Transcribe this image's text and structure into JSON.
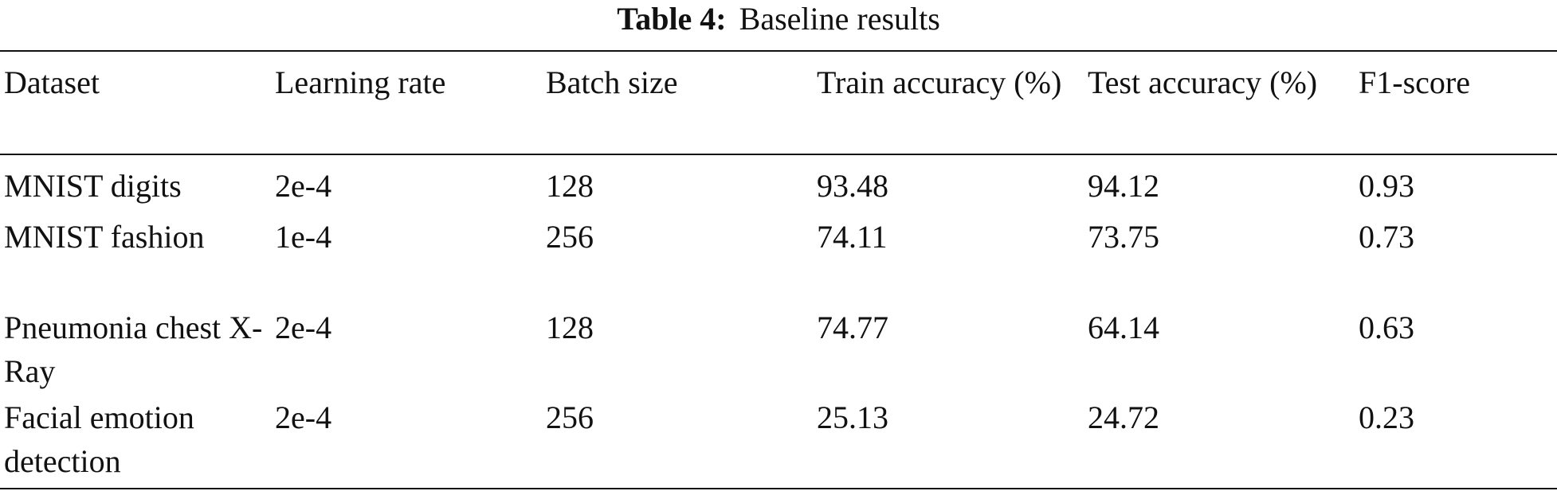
{
  "caption": {
    "label": "Table 4:",
    "title": "Baseline results"
  },
  "table": {
    "headers": [
      "Dataset",
      "Learning rate",
      "Batch size",
      "Train accuracy (%)",
      "Test accuracy (%)",
      "F1-score"
    ],
    "rows": [
      [
        "MNIST digits",
        "2e-4",
        "128",
        "93.48",
        "94.12",
        "0.93"
      ],
      [
        "MNIST fashion",
        "1e-4",
        "256",
        "74.11",
        "73.75",
        "0.73"
      ],
      [
        "Pneumonia chest X-Ray",
        "2e-4",
        "128",
        "74.77",
        "64.14",
        "0.63"
      ],
      [
        "Facial emotion detection",
        "2e-4",
        "256",
        "25.13",
        "24.72",
        "0.23"
      ]
    ]
  }
}
